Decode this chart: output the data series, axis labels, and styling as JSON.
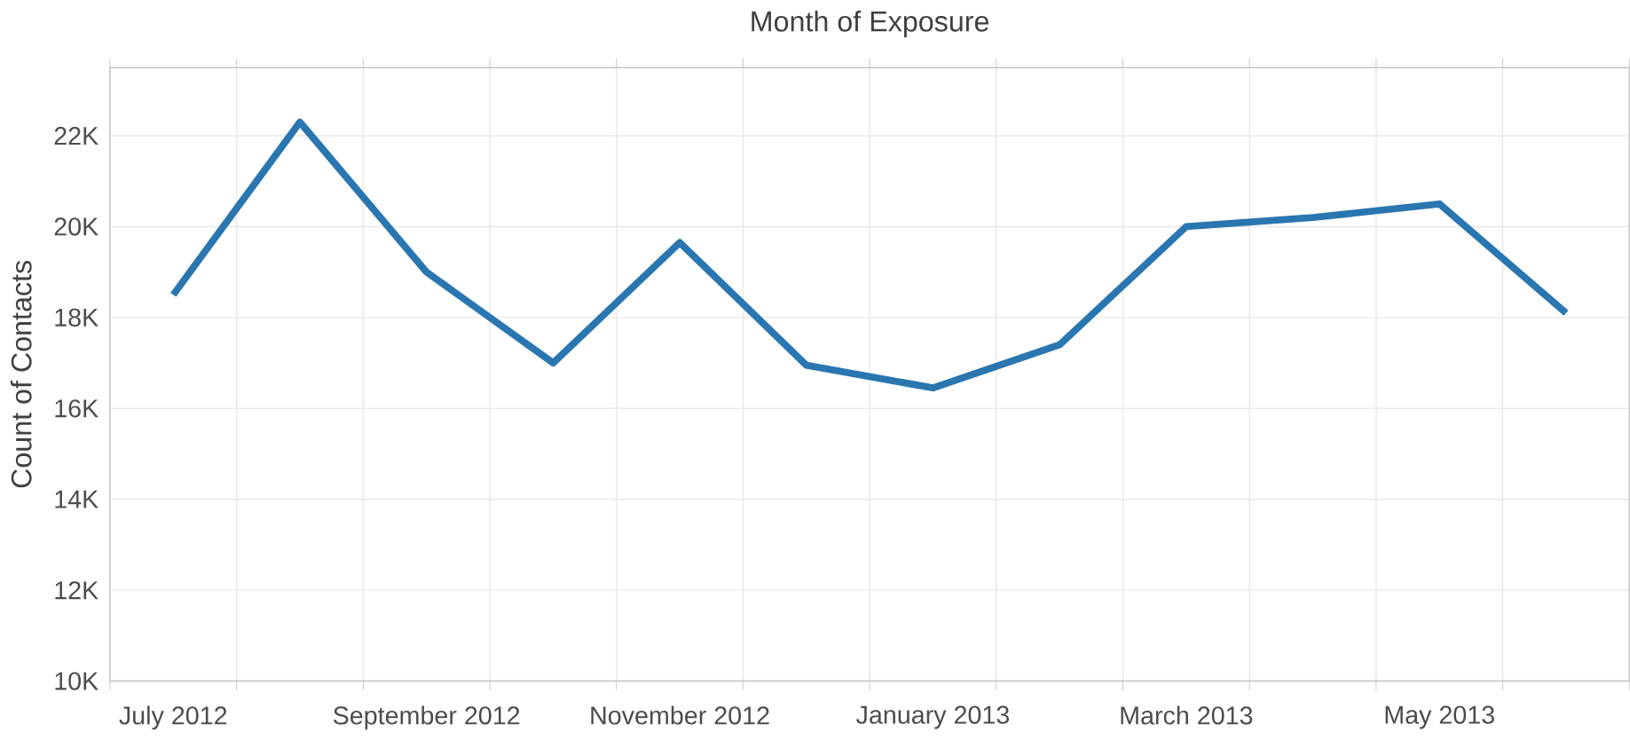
{
  "chart_data": {
    "type": "line",
    "title": "Month of Exposure",
    "ylabel": "Count of Contacts",
    "categories": [
      "July 2012",
      null,
      "September 2012",
      null,
      "November 2012",
      null,
      "January 2013",
      null,
      "March 2013",
      null,
      "May 2013",
      null
    ],
    "series": [
      {
        "color": "#2a76b0",
        "values": [
          18500,
          22300,
          19000,
          17000,
          19650,
          16950,
          16450,
          17400,
          20000,
          20200,
          20500,
          18100
        ]
      }
    ],
    "ylim": [
      10000,
      23500
    ],
    "yticks": [
      {
        "value": 10000,
        "label": "10K"
      },
      {
        "value": 12000,
        "label": "12K"
      },
      {
        "value": 14000,
        "label": "14K"
      },
      {
        "value": 16000,
        "label": "16K"
      },
      {
        "value": 18000,
        "label": "18K"
      },
      {
        "value": 20000,
        "label": "20K"
      },
      {
        "value": 22000,
        "label": "22K"
      }
    ],
    "grid": true,
    "marker": "none",
    "line_style": "solid"
  }
}
